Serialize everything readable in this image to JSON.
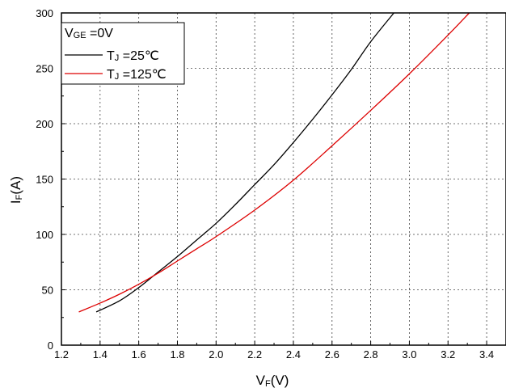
{
  "chart_data": {
    "type": "line",
    "xlabel": {
      "main": "V",
      "sub": "F",
      "suffix": "(V)"
    },
    "ylabel": {
      "main": "I",
      "sub": "F",
      "suffix": "(A)"
    },
    "xlim": [
      1.2,
      3.5
    ],
    "ylim": [
      0,
      300
    ],
    "xticks": [
      1.2,
      1.4,
      1.6,
      1.8,
      2.0,
      2.2,
      2.4,
      2.6,
      2.8,
      3.0,
      3.2,
      3.4
    ],
    "xtick_labels": [
      "1.2",
      "1.4",
      "1.6",
      "1.8",
      "2.0",
      "2.2",
      "2.4",
      "2.6",
      "2.8",
      "3.0",
      "3.2",
      "3.4"
    ],
    "yticks": [
      0,
      50,
      100,
      150,
      200,
      250,
      300
    ],
    "ytick_labels": [
      "0",
      "50",
      "100",
      "150",
      "200",
      "250",
      "300"
    ],
    "grid": true,
    "legend": {
      "placement": "top-left",
      "title": {
        "main": "V",
        "sub": "GE",
        "suffix": " =0V"
      }
    },
    "series": [
      {
        "name": {
          "main": "T",
          "sub": "J",
          "suffix": " =25℃"
        },
        "color": "#000000",
        "x": [
          1.38,
          1.5,
          1.6,
          1.7,
          1.8,
          1.9,
          2.0,
          2.1,
          2.2,
          2.3,
          2.4,
          2.5,
          2.6,
          2.7,
          2.8,
          2.92
        ],
        "y": [
          30,
          40,
          52,
          66,
          80,
          95,
          110,
          127,
          145,
          163,
          183,
          204,
          226,
          249,
          274,
          300
        ]
      },
      {
        "name": {
          "main": "T",
          "sub": "J",
          "suffix": " =125℃"
        },
        "color": "#dd0000",
        "x": [
          1.29,
          1.4,
          1.5,
          1.6,
          1.7,
          1.8,
          1.9,
          2.0,
          2.2,
          2.4,
          2.6,
          2.8,
          3.0,
          3.2,
          3.31
        ],
        "y": [
          30,
          38,
          46,
          55,
          65,
          76,
          87,
          98,
          122,
          149,
          180,
          212,
          245,
          280,
          300
        ]
      }
    ]
  }
}
